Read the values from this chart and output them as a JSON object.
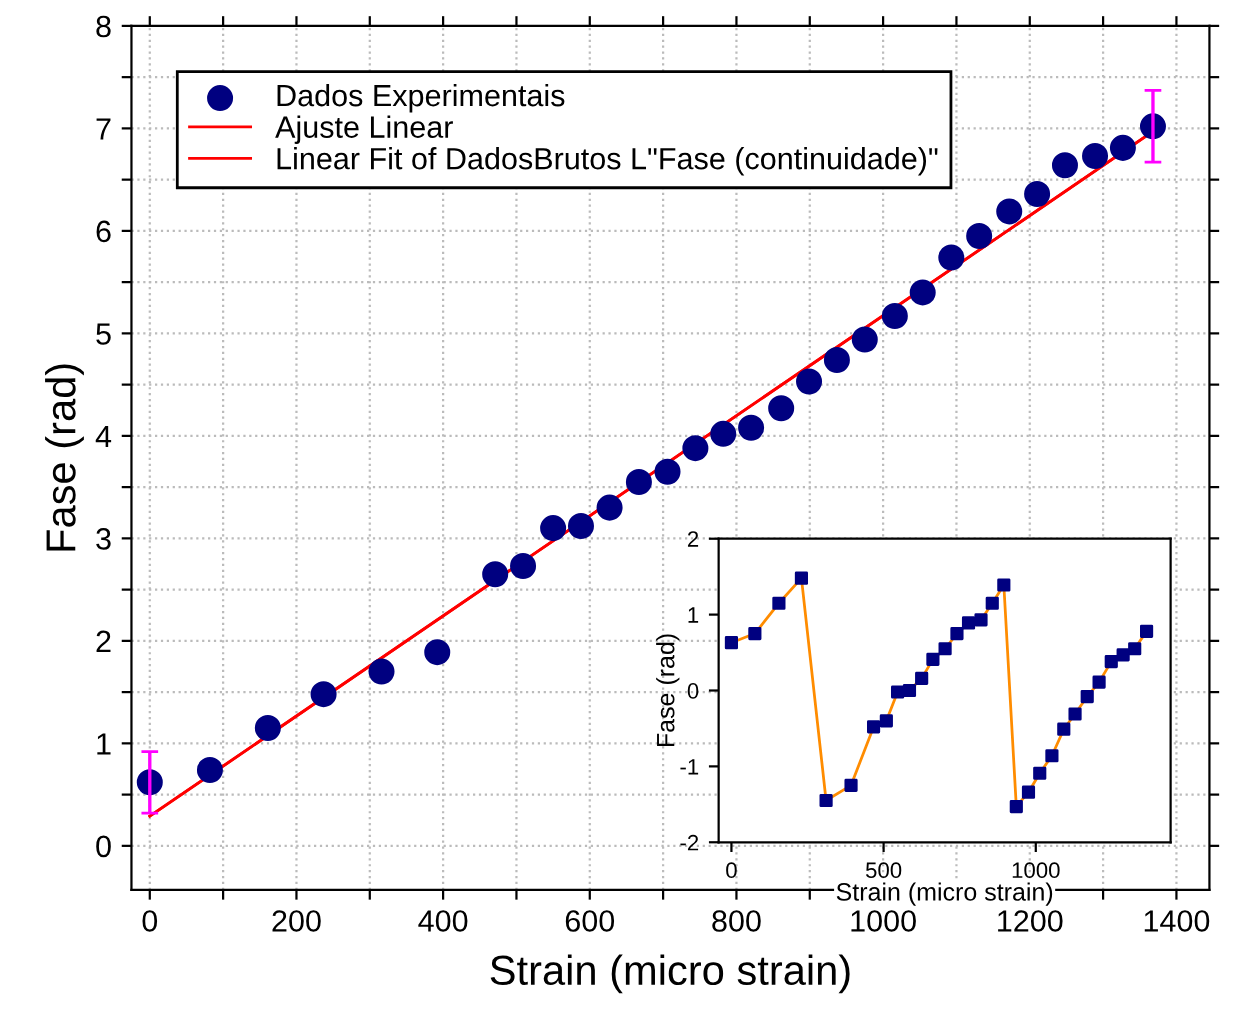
{
  "chart_data": [
    {
      "type": "scatter",
      "xlabel": "Strain (micro strain)",
      "ylabel": "Fase (rad)",
      "legend": "top left",
      "grid": true,
      "xlim": [
        -25,
        1445
      ],
      "ylim": [
        -0.43,
        8
      ],
      "xticks": [
        0,
        {
          "value": 100,
          "label": null
        },
        200,
        {
          "value": 300,
          "label": null
        },
        400,
        {
          "value": 500,
          "label": null
        },
        600,
        {
          "value": 700,
          "label": null
        },
        800,
        {
          "value": 900,
          "label": null
        },
        1000,
        {
          "value": 1100,
          "label": null
        },
        1200,
        {
          "value": 1300,
          "label": null
        },
        1400
      ],
      "yticks": [
        0,
        {
          "value": 0.5,
          "label": null
        },
        1,
        {
          "value": 1.5,
          "label": null
        },
        2,
        {
          "value": 2.5,
          "label": null
        },
        3,
        {
          "value": 3.5,
          "label": null
        },
        4,
        {
          "value": 4.5,
          "label": null
        },
        5,
        {
          "value": 5.5,
          "label": null
        },
        6,
        {
          "value": 6.5,
          "label": null
        },
        7,
        {
          "value": 7.5,
          "label": null
        },
        8
      ],
      "series": [
        {
          "name": "Dados Experimentais",
          "marker": "circle",
          "color": "#000080",
          "x": [
            0,
            82,
            161,
            237,
            316,
            392,
            471,
            509,
            550,
            588,
            627,
            667,
            706,
            744,
            782,
            820,
            861,
            899,
            937,
            975,
            1016,
            1054,
            1093,
            1131,
            1172,
            1210,
            1248,
            1289,
            1327,
            1368
          ],
          "values": [
            0.62,
            0.74,
            1.15,
            1.48,
            1.7,
            1.89,
            2.65,
            2.73,
            3.1,
            3.12,
            3.3,
            3.55,
            3.65,
            3.88,
            4.02,
            4.08,
            4.27,
            4.53,
            4.74,
            4.94,
            5.17,
            5.4,
            5.74,
            5.95,
            6.19,
            6.36,
            6.64,
            6.73,
            6.81,
            7.02
          ],
          "errors": [
            0.3,
            null,
            null,
            null,
            null,
            null,
            null,
            null,
            null,
            null,
            null,
            null,
            null,
            null,
            null,
            null,
            null,
            null,
            null,
            null,
            null,
            null,
            null,
            null,
            null,
            null,
            null,
            null,
            null,
            0.35
          ]
        },
        {
          "name": "Ajuste Linear",
          "type": "line",
          "marker": "none",
          "color": "#ff0000",
          "x": [
            0,
            1368
          ],
          "values": [
            0.29,
            6.97
          ]
        },
        {
          "name": "Linear Fit of DadosBrutos L\"Fase (continuidade)\"",
          "type": "line",
          "marker": "none",
          "color": "#ff0000",
          "x": [
            0,
            1368
          ],
          "values": [
            0.29,
            6.97
          ]
        }
      ]
    },
    {
      "type": "line",
      "xlabel": "Strain (micro strain)",
      "ylabel": "Fase (rad)",
      "grid": false,
      "xlim": [
        -42,
        1443
      ],
      "ylim": [
        -2,
        2
      ],
      "xticks": [
        0,
        500,
        1000
      ],
      "yticks": [
        -2,
        -1,
        0,
        1,
        2
      ],
      "series": [
        {
          "marker": "none",
          "color": "#ff8c00",
          "x": [
            0,
            77,
            156,
            230,
            311,
            393,
            467,
            509,
            546,
            585,
            625,
            662,
            702,
            741,
            779,
            820,
            857,
            895,
            936,
            976,
            1013,
            1053,
            1092,
            1129,
            1169,
            1208,
            1248,
            1287,
            1325,
            1364
          ],
          "values": [
            0.63,
            0.75,
            1.15,
            1.48,
            -1.45,
            -1.25,
            -0.48,
            -0.4,
            -0.02,
            0.0,
            0.16,
            0.41,
            0.55,
            0.75,
            0.89,
            0.93,
            1.15,
            1.39,
            -1.53,
            -1.34,
            -1.09,
            -0.86,
            -0.51,
            -0.31,
            -0.08,
            0.11,
            0.38,
            0.47,
            0.55,
            0.78
          ]
        },
        {
          "type": "scatter",
          "marker": "square",
          "color": "#000080",
          "x": [
            0,
            77,
            156,
            230,
            311,
            393,
            467,
            509,
            546,
            585,
            625,
            662,
            702,
            741,
            779,
            820,
            857,
            895,
            936,
            976,
            1013,
            1053,
            1092,
            1129,
            1169,
            1208,
            1248,
            1287,
            1325,
            1364
          ],
          "values": [
            0.63,
            0.75,
            1.15,
            1.48,
            -1.45,
            -1.25,
            -0.48,
            -0.4,
            -0.02,
            0.0,
            0.16,
            0.41,
            0.55,
            0.75,
            0.89,
            0.93,
            1.15,
            1.39,
            -1.53,
            -1.34,
            -1.09,
            -0.86,
            -0.51,
            -0.31,
            -0.08,
            0.11,
            0.38,
            0.47,
            0.55,
            0.78
          ]
        }
      ]
    }
  ]
}
